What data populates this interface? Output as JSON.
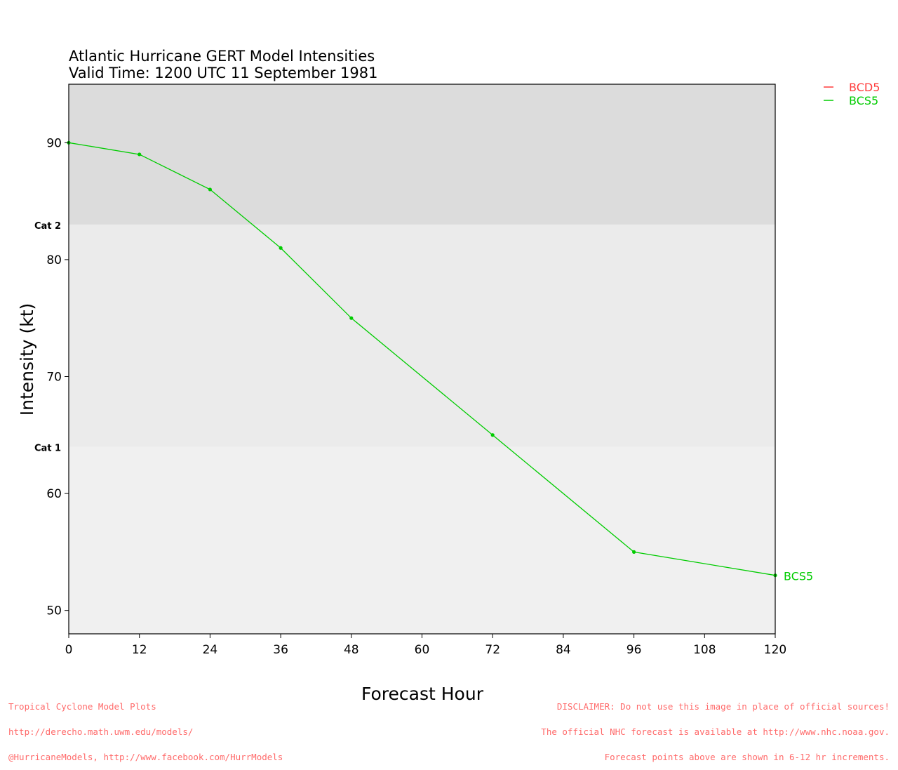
{
  "chart_data": {
    "type": "line",
    "title": "Atlantic Hurricane GERT Model Intensities",
    "subtitle": "Valid Time: 1200 UTC 11 September 1981",
    "xlabel": "Forecast Hour",
    "ylabel": "Intensity (kt)",
    "xlim": [
      0,
      120
    ],
    "ylim": [
      48,
      95
    ],
    "xticks": [
      0,
      12,
      24,
      36,
      48,
      60,
      72,
      84,
      96,
      108,
      120
    ],
    "yticks": [
      50,
      60,
      70,
      80,
      90
    ],
    "grid": false,
    "legend_placement": "top-right outside",
    "category_bands": [
      {
        "label": "Cat 1",
        "threshold": 64,
        "color": "#ebebeb"
      },
      {
        "label": "Cat 2",
        "threshold": 83,
        "color": "#dcdcdc"
      }
    ],
    "below_band_color": "#f0f0f0",
    "series": [
      {
        "name": "BCD5",
        "color": "#ff3b3b",
        "x": [],
        "y": []
      },
      {
        "name": "BCS5",
        "color": "#00cc00",
        "x": [
          0,
          12,
          24,
          36,
          48,
          72,
          96,
          120
        ],
        "y": [
          90,
          89,
          86,
          81,
          75,
          65,
          55,
          53
        ],
        "end_label": "BCS5"
      }
    ]
  },
  "footer": {
    "left": [
      "Tropical Cyclone Model Plots",
      "http://derecho.math.uwm.edu/models/",
      "@HurricaneModels, http://www.facebook.com/HurrModels"
    ],
    "right": [
      "DISCLAIMER: Do not use this image in place of official sources!",
      "The official NHC forecast is available at http://www.nhc.noaa.gov.",
      "Forecast points above are shown in 6-12 hr increments."
    ]
  }
}
